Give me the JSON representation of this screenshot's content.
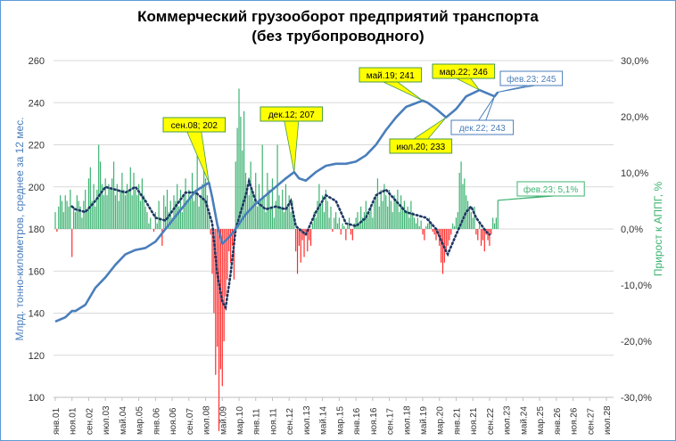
{
  "chart_data": {
    "type": "combo",
    "title_line1": "Коммерческий грузооборот предприятий транспорта",
    "title_line2": "(без трубопроводного)",
    "ylabel_left": "Млрд. тонно-километров, среднее за 12 мес.",
    "ylabel_right": "Прирост к АППГ, %",
    "ylim_left": [
      100,
      260
    ],
    "ylim_right": [
      -30,
      30
    ],
    "yticks_left": [
      "100",
      "120",
      "140",
      "160",
      "180",
      "200",
      "220",
      "240",
      "260"
    ],
    "yticks_right": [
      "-30,0%",
      "-20,0%",
      "-10,0%",
      "0,0%",
      "10,0%",
      "20,0%",
      "30,0%"
    ],
    "xlim": [
      "2001-01",
      "2028-07"
    ],
    "xticks": [
      "янв.01",
      "ноя.01",
      "сен.02",
      "июл.03",
      "май.04",
      "мар.05",
      "янв.06",
      "ноя.06",
      "сен.07",
      "июл.08",
      "май.09",
      "мар.10",
      "янв.11",
      "ноя.11",
      "сен.12",
      "июл.13",
      "май.14",
      "мар.15",
      "янв.16",
      "ноя.16",
      "сен.17",
      "июл.18",
      "май.19",
      "мар.20",
      "янв.21",
      "ноя.21",
      "сен.22",
      "июл.23",
      "май.24",
      "мар.25",
      "янв.26",
      "ноя.26",
      "сен.27",
      "июл.28"
    ],
    "grid": true,
    "colors": {
      "line": "#4a7ebb",
      "avg": "#1f3864",
      "pos": "#3cb371",
      "neg": "#ff2a2a",
      "callout": "#ffff00",
      "grid": "#d9d9d9"
    },
    "freight_12m_avg": {
      "axis": "left",
      "points": [
        [
          "2001-01",
          136
        ],
        [
          "2001-07",
          138
        ],
        [
          "2001-11",
          141
        ],
        [
          "2002-01",
          141
        ],
        [
          "2002-07",
          144
        ],
        [
          "2003-01",
          152
        ],
        [
          "2003-07",
          157
        ],
        [
          "2004-01",
          163
        ],
        [
          "2004-07",
          168
        ],
        [
          "2005-01",
          170
        ],
        [
          "2005-07",
          171
        ],
        [
          "2006-01",
          174
        ],
        [
          "2006-07",
          180
        ],
        [
          "2007-01",
          186
        ],
        [
          "2007-07",
          192
        ],
        [
          "2008-01",
          198
        ],
        [
          "2008-09",
          202
        ],
        [
          "2008-11",
          195
        ],
        [
          "2009-02",
          182
        ],
        [
          "2009-05",
          173
        ],
        [
          "2009-09",
          176
        ],
        [
          "2010-01",
          180
        ],
        [
          "2010-07",
          187
        ],
        [
          "2011-01",
          192
        ],
        [
          "2011-07",
          196
        ],
        [
          "2012-01",
          200
        ],
        [
          "2012-07",
          204
        ],
        [
          "2012-12",
          207
        ],
        [
          "2013-03",
          204
        ],
        [
          "2013-07",
          203
        ],
        [
          "2014-01",
          207
        ],
        [
          "2014-07",
          210
        ],
        [
          "2015-01",
          211
        ],
        [
          "2015-07",
          211
        ],
        [
          "2016-01",
          212
        ],
        [
          "2016-07",
          215
        ],
        [
          "2017-01",
          220
        ],
        [
          "2017-07",
          227
        ],
        [
          "2018-01",
          233
        ],
        [
          "2018-07",
          238
        ],
        [
          "2019-05",
          241
        ],
        [
          "2019-08",
          240
        ],
        [
          "2020-01",
          237
        ],
        [
          "2020-07",
          233
        ],
        [
          "2021-01",
          237
        ],
        [
          "2021-07",
          243
        ],
        [
          "2022-03",
          246
        ],
        [
          "2022-09",
          244
        ],
        [
          "2022-12",
          243
        ],
        [
          "2023-02",
          245
        ]
      ]
    },
    "yoy_growth_monthly": {
      "axis": "right",
      "start": "2001-01",
      "values": [
        3,
        -0.5,
        4,
        6,
        5,
        3,
        6,
        5,
        4,
        7,
        -5,
        4,
        3,
        6,
        5,
        4,
        2,
        5,
        7,
        3,
        9,
        11,
        5,
        8,
        4,
        7,
        15,
        12,
        8,
        6,
        9,
        6,
        8,
        7,
        9,
        12,
        6,
        8,
        5,
        7,
        10,
        7,
        6,
        8,
        7,
        11,
        6,
        10,
        7,
        6,
        8,
        5,
        9,
        6,
        4,
        3,
        1,
        2,
        0,
        -0.5,
        3,
        1,
        5,
        2,
        -3,
        6,
        4,
        7,
        3,
        5,
        2,
        6,
        5,
        8,
        4,
        7,
        3,
        6,
        9,
        5,
        7,
        6,
        10,
        5,
        7,
        15,
        4,
        6,
        8,
        12,
        9,
        6,
        3,
        -1,
        -8,
        -15,
        -26,
        -21,
        -36,
        -25,
        -28,
        -20,
        -12,
        -9,
        -4,
        -6,
        -3,
        -9,
        12,
        18,
        25,
        20,
        14,
        21,
        10,
        8,
        6,
        12,
        7,
        5,
        10,
        4,
        8,
        5,
        15,
        6,
        3,
        10,
        7,
        4,
        9,
        2,
        5,
        15,
        6,
        4,
        7,
        3,
        8,
        4,
        6,
        3,
        5,
        2,
        -4,
        -8,
        -3,
        -6,
        -2,
        -5,
        -1,
        -4,
        -2,
        -3,
        1,
        3,
        2,
        5,
        8,
        4,
        6,
        3,
        7,
        5,
        2,
        4,
        -0.5,
        2,
        3,
        1,
        2,
        -1,
        1,
        0.5,
        -2,
        1,
        2,
        -1,
        -2,
        1,
        2,
        3,
        1,
        4,
        2,
        3,
        5,
        2,
        3,
        4,
        2,
        5,
        6,
        9,
        4,
        7,
        5,
        8,
        6,
        4,
        7,
        5,
        3,
        6,
        5,
        7,
        3,
        6,
        4,
        5,
        3,
        4,
        2,
        5,
        3,
        2,
        1,
        2,
        0.5,
        1.5,
        -1,
        -2,
        0.5,
        1,
        2,
        1,
        -0.5,
        -1,
        -2,
        -1,
        -3,
        -6,
        -8,
        -6,
        -4,
        -3,
        -2,
        -1,
        1,
        0.5,
        2,
        3,
        10,
        12,
        8,
        9,
        6,
        5,
        4,
        3,
        2,
        4,
        -1,
        -2,
        1,
        -3,
        -2,
        -4,
        -1,
        -2,
        -3,
        -1,
        2,
        1,
        2,
        5.1
      ]
    },
    "yoy_growth_12m_avg": {
      "axis": "right",
      "points": [
        [
          "2001-11",
          4
        ],
        [
          "2002-01",
          3.5
        ],
        [
          "2002-07",
          3
        ],
        [
          "2003-01",
          5
        ],
        [
          "2003-07",
          7.5
        ],
        [
          "2004-01",
          7
        ],
        [
          "2004-07",
          6.5
        ],
        [
          "2005-01",
          7.5
        ],
        [
          "2005-07",
          5
        ],
        [
          "2006-01",
          2
        ],
        [
          "2006-07",
          1.5
        ],
        [
          "2007-01",
          4
        ],
        [
          "2007-07",
          6.5
        ],
        [
          "2008-01",
          6.5
        ],
        [
          "2008-07",
          5
        ],
        [
          "2008-11",
          1
        ],
        [
          "2009-02",
          -8
        ],
        [
          "2009-05",
          -13
        ],
        [
          "2009-07",
          -14
        ],
        [
          "2009-10",
          -8
        ],
        [
          "2010-01",
          0
        ],
        [
          "2010-07",
          6
        ],
        [
          "2010-09",
          8.5
        ],
        [
          "2011-01",
          5
        ],
        [
          "2011-07",
          3.5
        ],
        [
          "2012-01",
          4
        ],
        [
          "2012-07",
          3.5
        ],
        [
          "2012-10",
          5
        ],
        [
          "2013-01",
          0.5
        ],
        [
          "2013-07",
          -1
        ],
        [
          "2014-01",
          3
        ],
        [
          "2014-07",
          6
        ],
        [
          "2015-01",
          5
        ],
        [
          "2015-07",
          1
        ],
        [
          "2016-01",
          0.5
        ],
        [
          "2016-07",
          2
        ],
        [
          "2017-01",
          6
        ],
        [
          "2017-07",
          7
        ],
        [
          "2018-01",
          5
        ],
        [
          "2018-07",
          3
        ],
        [
          "2019-01",
          2.5
        ],
        [
          "2019-07",
          2
        ],
        [
          "2020-01",
          0
        ],
        [
          "2020-07",
          -4
        ],
        [
          "2020-08",
          -4.5
        ],
        [
          "2021-01",
          -1
        ],
        [
          "2021-07",
          3
        ],
        [
          "2021-10",
          4
        ],
        [
          "2022-01",
          2
        ],
        [
          "2022-07",
          -0.5
        ],
        [
          "2022-09",
          -1
        ]
      ]
    },
    "annotations": [
      {
        "text": "сен.08; 202",
        "date": "2008-09",
        "value": 202,
        "axis": "left",
        "style": "yellow"
      },
      {
        "text": "дек.12; 207",
        "date": "2012-12",
        "value": 207,
        "axis": "left",
        "style": "yellow"
      },
      {
        "text": "май.19; 241",
        "date": "2019-05",
        "value": 241,
        "axis": "left",
        "style": "yellow"
      },
      {
        "text": "июл.20; 233",
        "date": "2020-07",
        "value": 233,
        "axis": "left",
        "style": "yellow"
      },
      {
        "text": "мар.22; 246",
        "date": "2022-03",
        "value": 246,
        "axis": "left",
        "style": "yellow"
      },
      {
        "text": "фев.23; 245",
        "date": "2023-02",
        "value": 245,
        "axis": "left",
        "style": "blue"
      },
      {
        "text": "дек.22; 243",
        "date": "2022-12",
        "value": 243,
        "axis": "left",
        "style": "blue"
      },
      {
        "text": "фев.23; 5,1%",
        "date": "2023-02",
        "value": 5.1,
        "axis": "right",
        "style": "green"
      }
    ]
  }
}
